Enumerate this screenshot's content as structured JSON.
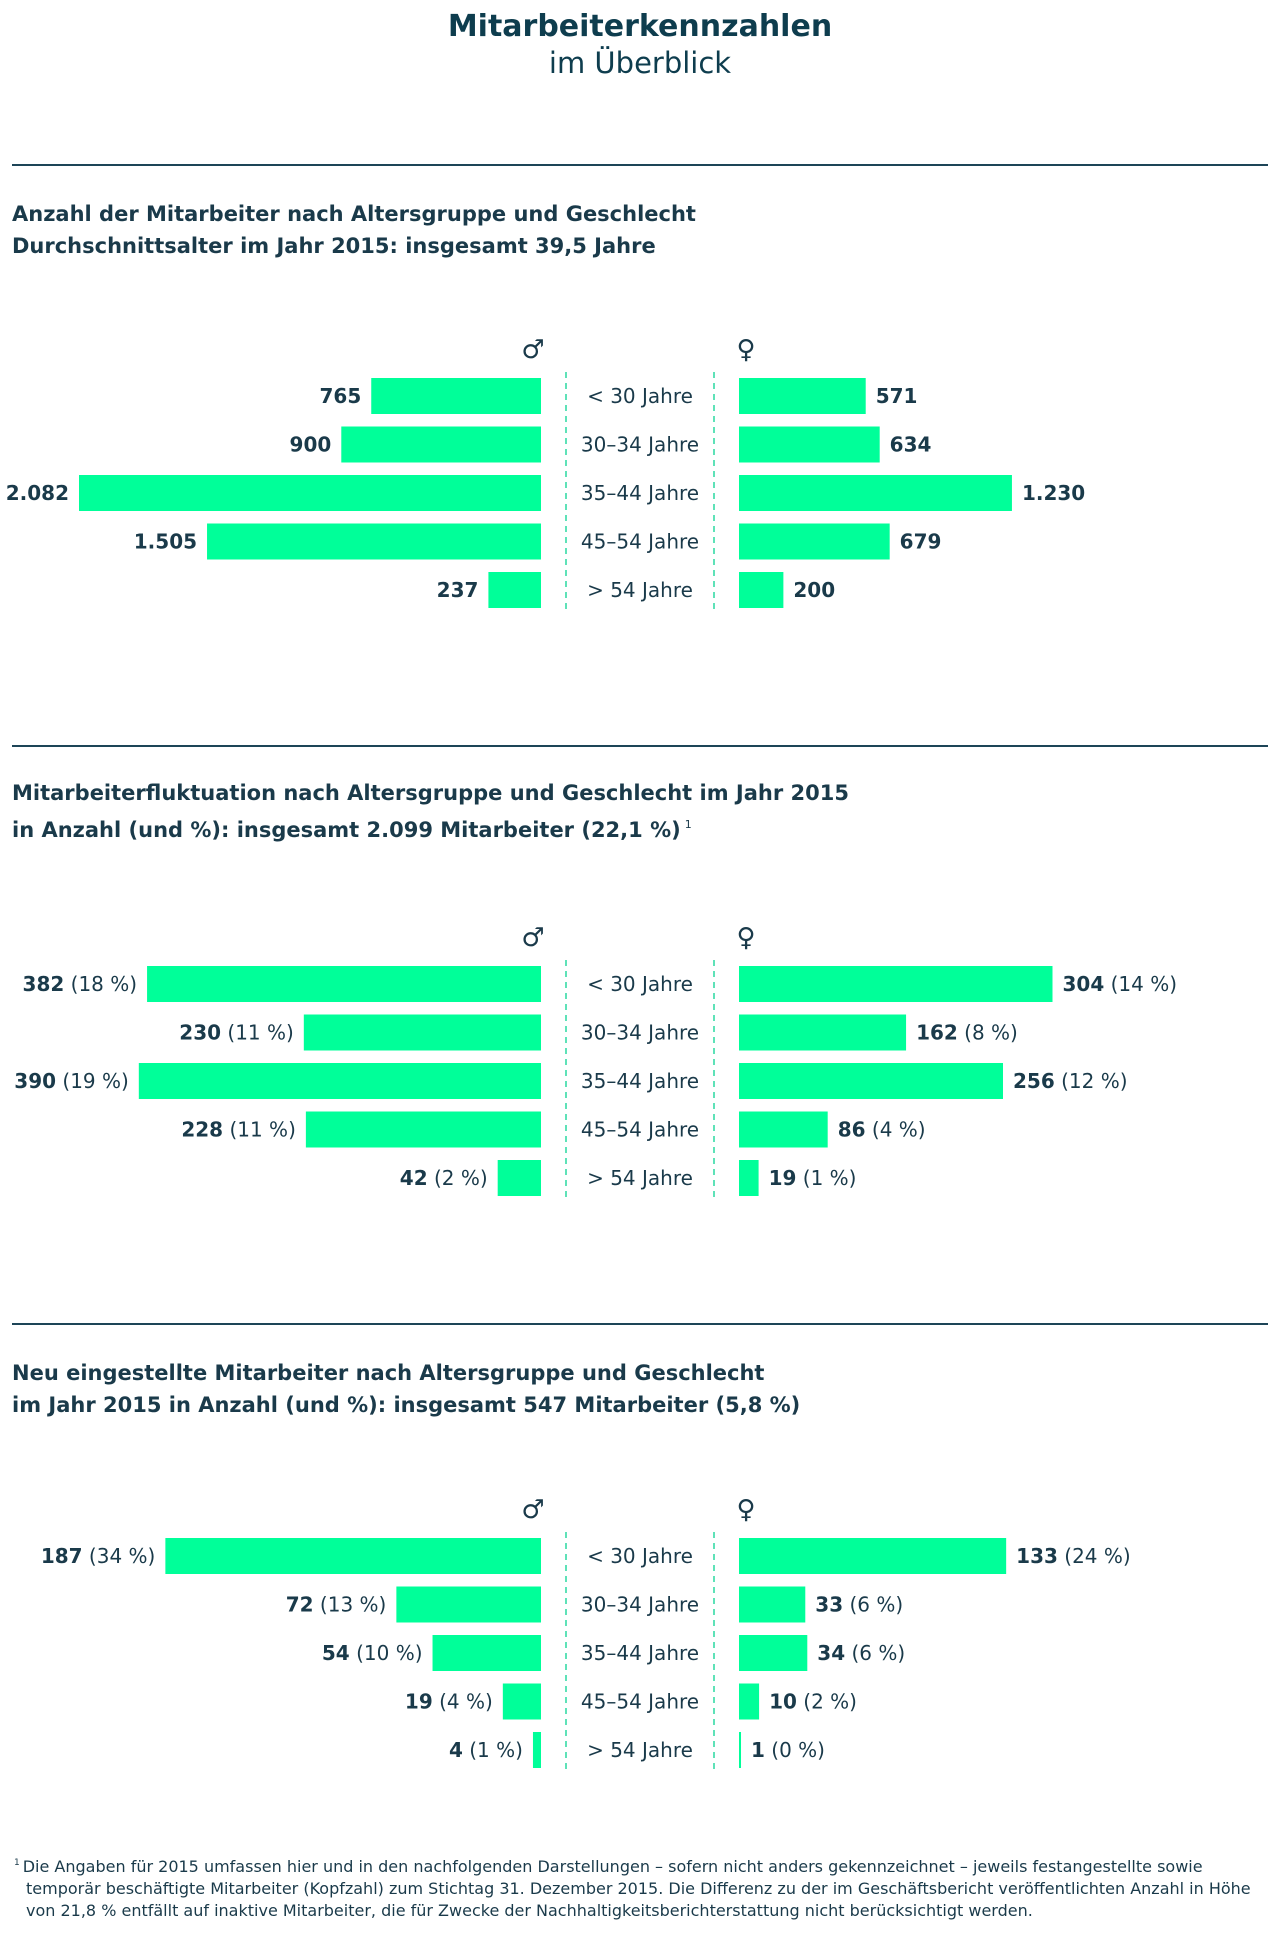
{
  "page": {
    "title_line1": "Mitarbeiterkennzahlen",
    "title_line2": "im Überblick"
  },
  "colors": {
    "bar": "#00ff99",
    "text": "#1a3a4a",
    "divider": "#2ad9a0"
  },
  "chart_data": [
    {
      "type": "bar",
      "orientation": "horizontal-population-pyramid",
      "title_line1": "Anzahl der Mitarbeiter nach Altersgruppe und Geschlecht",
      "title_line2": "Durchschnittsalter im Jahr 2015: insgesamt 39,5 Jahre",
      "categories": [
        "< 30 Jahre",
        "30–34 Jahre",
        "35–44 Jahre",
        "45–54 Jahre",
        "> 54 Jahre"
      ],
      "male_symbol": "♂",
      "female_symbol": "♀",
      "max": 2082,
      "series": [
        {
          "name": "male",
          "values": [
            765,
            900,
            2082,
            1505,
            237
          ],
          "labels": [
            "765",
            "900",
            "2.082",
            "1.505",
            "237"
          ],
          "pct": [
            "",
            "",
            "",
            "",
            ""
          ]
        },
        {
          "name": "female",
          "values": [
            571,
            634,
            1230,
            679,
            200
          ],
          "labels": [
            "571",
            "634",
            "1.230",
            "679",
            "200"
          ],
          "pct": [
            "",
            "",
            "",
            "",
            ""
          ]
        }
      ]
    },
    {
      "type": "bar",
      "orientation": "horizontal-population-pyramid",
      "title_line1": "Mitarbeiterfluktuation nach Altersgruppe und Geschlecht im Jahr 2015",
      "title_line2": "in Anzahl (und %): insgesamt 2.099 Mitarbeiter (22,1 %)",
      "footnote_ref": "1",
      "categories": [
        "< 30 Jahre",
        "30–34 Jahre",
        "35–44 Jahre",
        "45–54 Jahre",
        "> 54 Jahre"
      ],
      "male_symbol": "♂",
      "female_symbol": "♀",
      "max": 448,
      "series": [
        {
          "name": "male",
          "values": [
            382,
            230,
            390,
            228,
            42
          ],
          "labels": [
            "382",
            "230",
            "390",
            "228",
            "42"
          ],
          "pct": [
            "(18 %)",
            "(11 %)",
            "(19 %)",
            "(11 %)",
            "(2 %)"
          ]
        },
        {
          "name": "female",
          "values": [
            304,
            162,
            256,
            86,
            19
          ],
          "labels": [
            "304",
            "162",
            "256",
            "86",
            "19"
          ],
          "pct": [
            "(14 %)",
            "(8 %)",
            "(12 %)",
            "(4 %)",
            "(1 %)"
          ]
        }
      ]
    },
    {
      "type": "bar",
      "orientation": "horizontal-population-pyramid",
      "title_line1": "Neu eingestellte Mitarbeiter nach Altersgruppe und Geschlecht",
      "title_line2": "im Jahr 2015 in Anzahl (und %): insgesamt 547 Mitarbeiter (5,8 %)",
      "categories": [
        "< 30 Jahre",
        "30–34 Jahre",
        "35–44 Jahre",
        "45–54 Jahre",
        "> 54 Jahre"
      ],
      "male_symbol": "♂",
      "female_symbol": "♀",
      "max": 230,
      "series": [
        {
          "name": "male",
          "values": [
            187,
            72,
            54,
            19,
            4
          ],
          "labels": [
            "187",
            "72",
            "54",
            "19",
            "4"
          ],
          "pct": [
            "(34 %)",
            "(13 %)",
            "(10 %)",
            "(4 %)",
            "(1 %)"
          ]
        },
        {
          "name": "female",
          "values": [
            133,
            33,
            34,
            10,
            1
          ],
          "labels": [
            "133",
            "33",
            "34",
            "10",
            "1"
          ],
          "pct": [
            "(24 %)",
            "(6 %)",
            "(6 %)",
            "(2 %)",
            "(0 %)"
          ]
        }
      ]
    }
  ],
  "footnote": {
    "marker": "1",
    "line1": "Die Angaben für 2015 umfassen hier und in den nachfolgenden Darstellungen – sofern nicht anders gekennzeichnet – jeweils festangestellte sowie",
    "line2": "temporär beschäftigte Mitarbeiter (Kopfzahl) zum Stichtag 31. Dezember 2015. Die Differenz zu der im Geschäftsbericht veröffentlichten Anzahl in Höhe",
    "line3": "von 21,8 % entfällt auf inaktive Mitarbeiter, die für Zwecke der Nachhaltigkeitsberichterstattung nicht berücksichtigt werden."
  }
}
